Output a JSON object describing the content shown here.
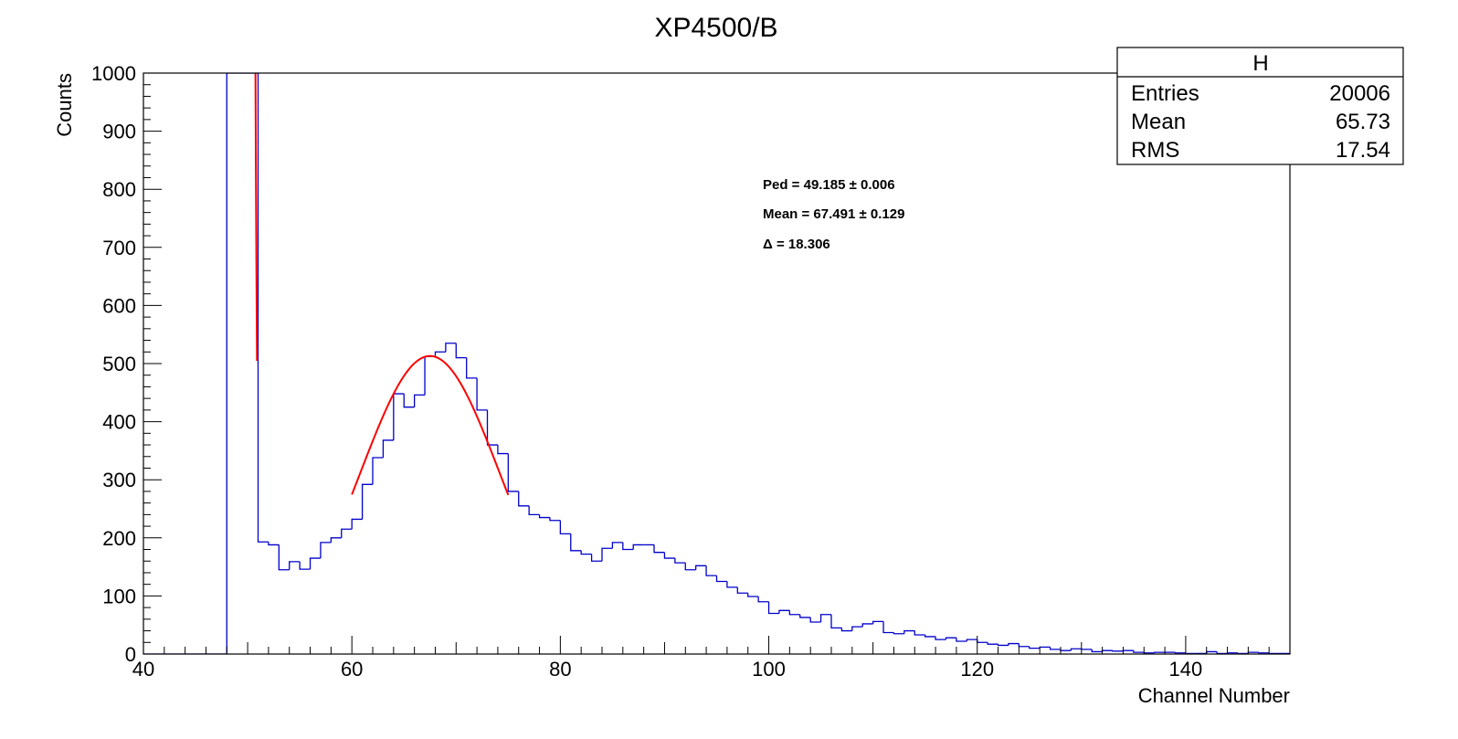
{
  "chart_data": {
    "type": "histogram",
    "title": "XP4500/B",
    "xlabel": "Channel Number",
    "ylabel": "Counts",
    "xlim": [
      40,
      150
    ],
    "ylim": [
      0,
      1000
    ],
    "x_ticks": [
      {
        "value": 40,
        "label": "40"
      },
      {
        "value": 60,
        "label": "60"
      },
      {
        "value": 80,
        "label": "80"
      },
      {
        "value": 100,
        "label": "100"
      },
      {
        "value": 120,
        "label": "120"
      },
      {
        "value": 140,
        "label": "140"
      }
    ],
    "y_ticks": [
      {
        "value": 0,
        "label": "0"
      },
      {
        "value": 100,
        "label": "100"
      },
      {
        "value": 200,
        "label": "200"
      },
      {
        "value": 300,
        "label": "300"
      },
      {
        "value": 400,
        "label": "400"
      },
      {
        "value": 500,
        "label": "500"
      },
      {
        "value": 600,
        "label": "600"
      },
      {
        "value": 700,
        "label": "700"
      },
      {
        "value": 800,
        "label": "800"
      },
      {
        "value": 900,
        "label": "900"
      },
      {
        "value": 1000,
        "label": "1000"
      }
    ],
    "grid": false,
    "histogram": {
      "color": "#0000cc",
      "bin_width": 1,
      "bin_start": 40,
      "counts": [
        0,
        0,
        0,
        0,
        0,
        0,
        0,
        0,
        1000,
        1000,
        1000,
        193,
        188,
        145,
        159,
        146,
        165,
        192,
        200,
        215,
        232,
        292,
        338,
        368,
        448,
        425,
        446,
        512,
        520,
        535,
        510,
        475,
        420,
        360,
        345,
        280,
        255,
        240,
        235,
        230,
        207,
        178,
        172,
        160,
        182,
        192,
        180,
        188,
        188,
        175,
        165,
        157,
        145,
        152,
        135,
        125,
        115,
        105,
        99,
        90,
        70,
        75,
        68,
        63,
        55,
        68,
        45,
        40,
        47,
        52,
        56,
        37,
        35,
        40,
        33,
        30,
        25,
        28,
        22,
        25,
        20,
        17,
        15,
        18,
        13,
        10,
        12,
        8,
        6,
        9,
        8,
        4,
        6,
        5,
        6,
        3,
        2,
        3,
        3,
        2,
        1,
        1,
        4,
        1,
        2,
        1,
        3,
        2,
        1,
        1
      ]
    },
    "fits": [
      {
        "name": "pedestal-fit",
        "color": "#ff0000",
        "x_range": [
          48.0,
          50.9
        ],
        "type": "gaussian",
        "mean": 49.185,
        "sigma": 0.6,
        "amplitude": 30000
      },
      {
        "name": "signal-fit",
        "color": "#ff0000",
        "x_range": [
          60.0,
          75.0
        ],
        "type": "gaussian",
        "mean": 67.491,
        "sigma": 6.7,
        "amplitude": 513
      }
    ],
    "annotations": [
      "Ped = 49.185 ± 0.006",
      "Mean = 67.491 ± 0.129",
      "Δ = 18.306"
    ],
    "stats_box": {
      "title": "H",
      "placement": "top-right",
      "rows": [
        {
          "label": "Entries",
          "value": "20006"
        },
        {
          "label": "Mean",
          "value": "65.73"
        },
        {
          "label": "RMS",
          "value": "17.54"
        }
      ]
    }
  }
}
